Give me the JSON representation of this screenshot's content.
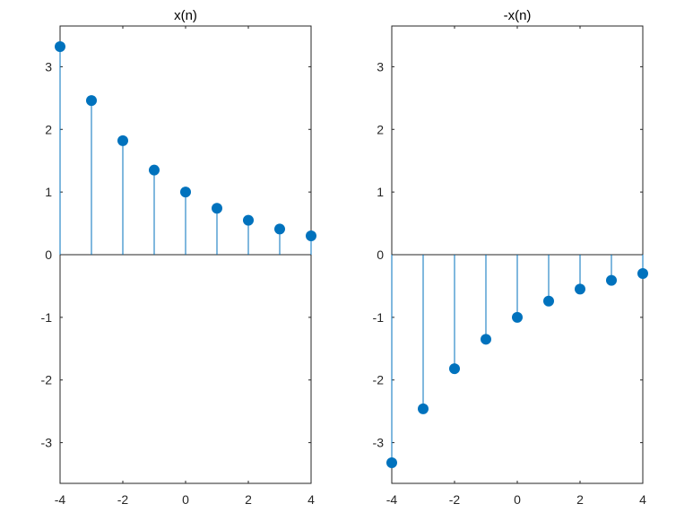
{
  "chart_data": [
    {
      "type": "stem",
      "title": "x(n)",
      "xlabel": "",
      "ylabel": "",
      "xlim": [
        -4,
        4
      ],
      "ylim": [
        -3.65,
        3.65
      ],
      "xticks": [
        -4,
        -2,
        0,
        2,
        4
      ],
      "yticks": [
        -3,
        -2,
        -1,
        0,
        1,
        2,
        3
      ],
      "grid": false,
      "color": "#0072BD",
      "x": [
        -4,
        -3,
        -2,
        -1,
        0,
        1,
        2,
        3,
        4
      ],
      "y": [
        3.32,
        2.46,
        1.82,
        1.35,
        1.0,
        0.74,
        0.55,
        0.41,
        0.3
      ]
    },
    {
      "type": "stem",
      "title": "-x(n)",
      "xlabel": "",
      "ylabel": "",
      "xlim": [
        -4,
        4
      ],
      "ylim": [
        -3.65,
        3.65
      ],
      "xticks": [
        -4,
        -2,
        0,
        2,
        4
      ],
      "yticks": [
        -3,
        -2,
        -1,
        0,
        1,
        2,
        3
      ],
      "grid": false,
      "color": "#0072BD",
      "x": [
        -4,
        -3,
        -2,
        -1,
        0,
        1,
        2,
        3,
        4
      ],
      "y": [
        -3.32,
        -2.46,
        -1.82,
        -1.35,
        -1.0,
        -0.74,
        -0.55,
        -0.41,
        -0.3
      ]
    }
  ]
}
